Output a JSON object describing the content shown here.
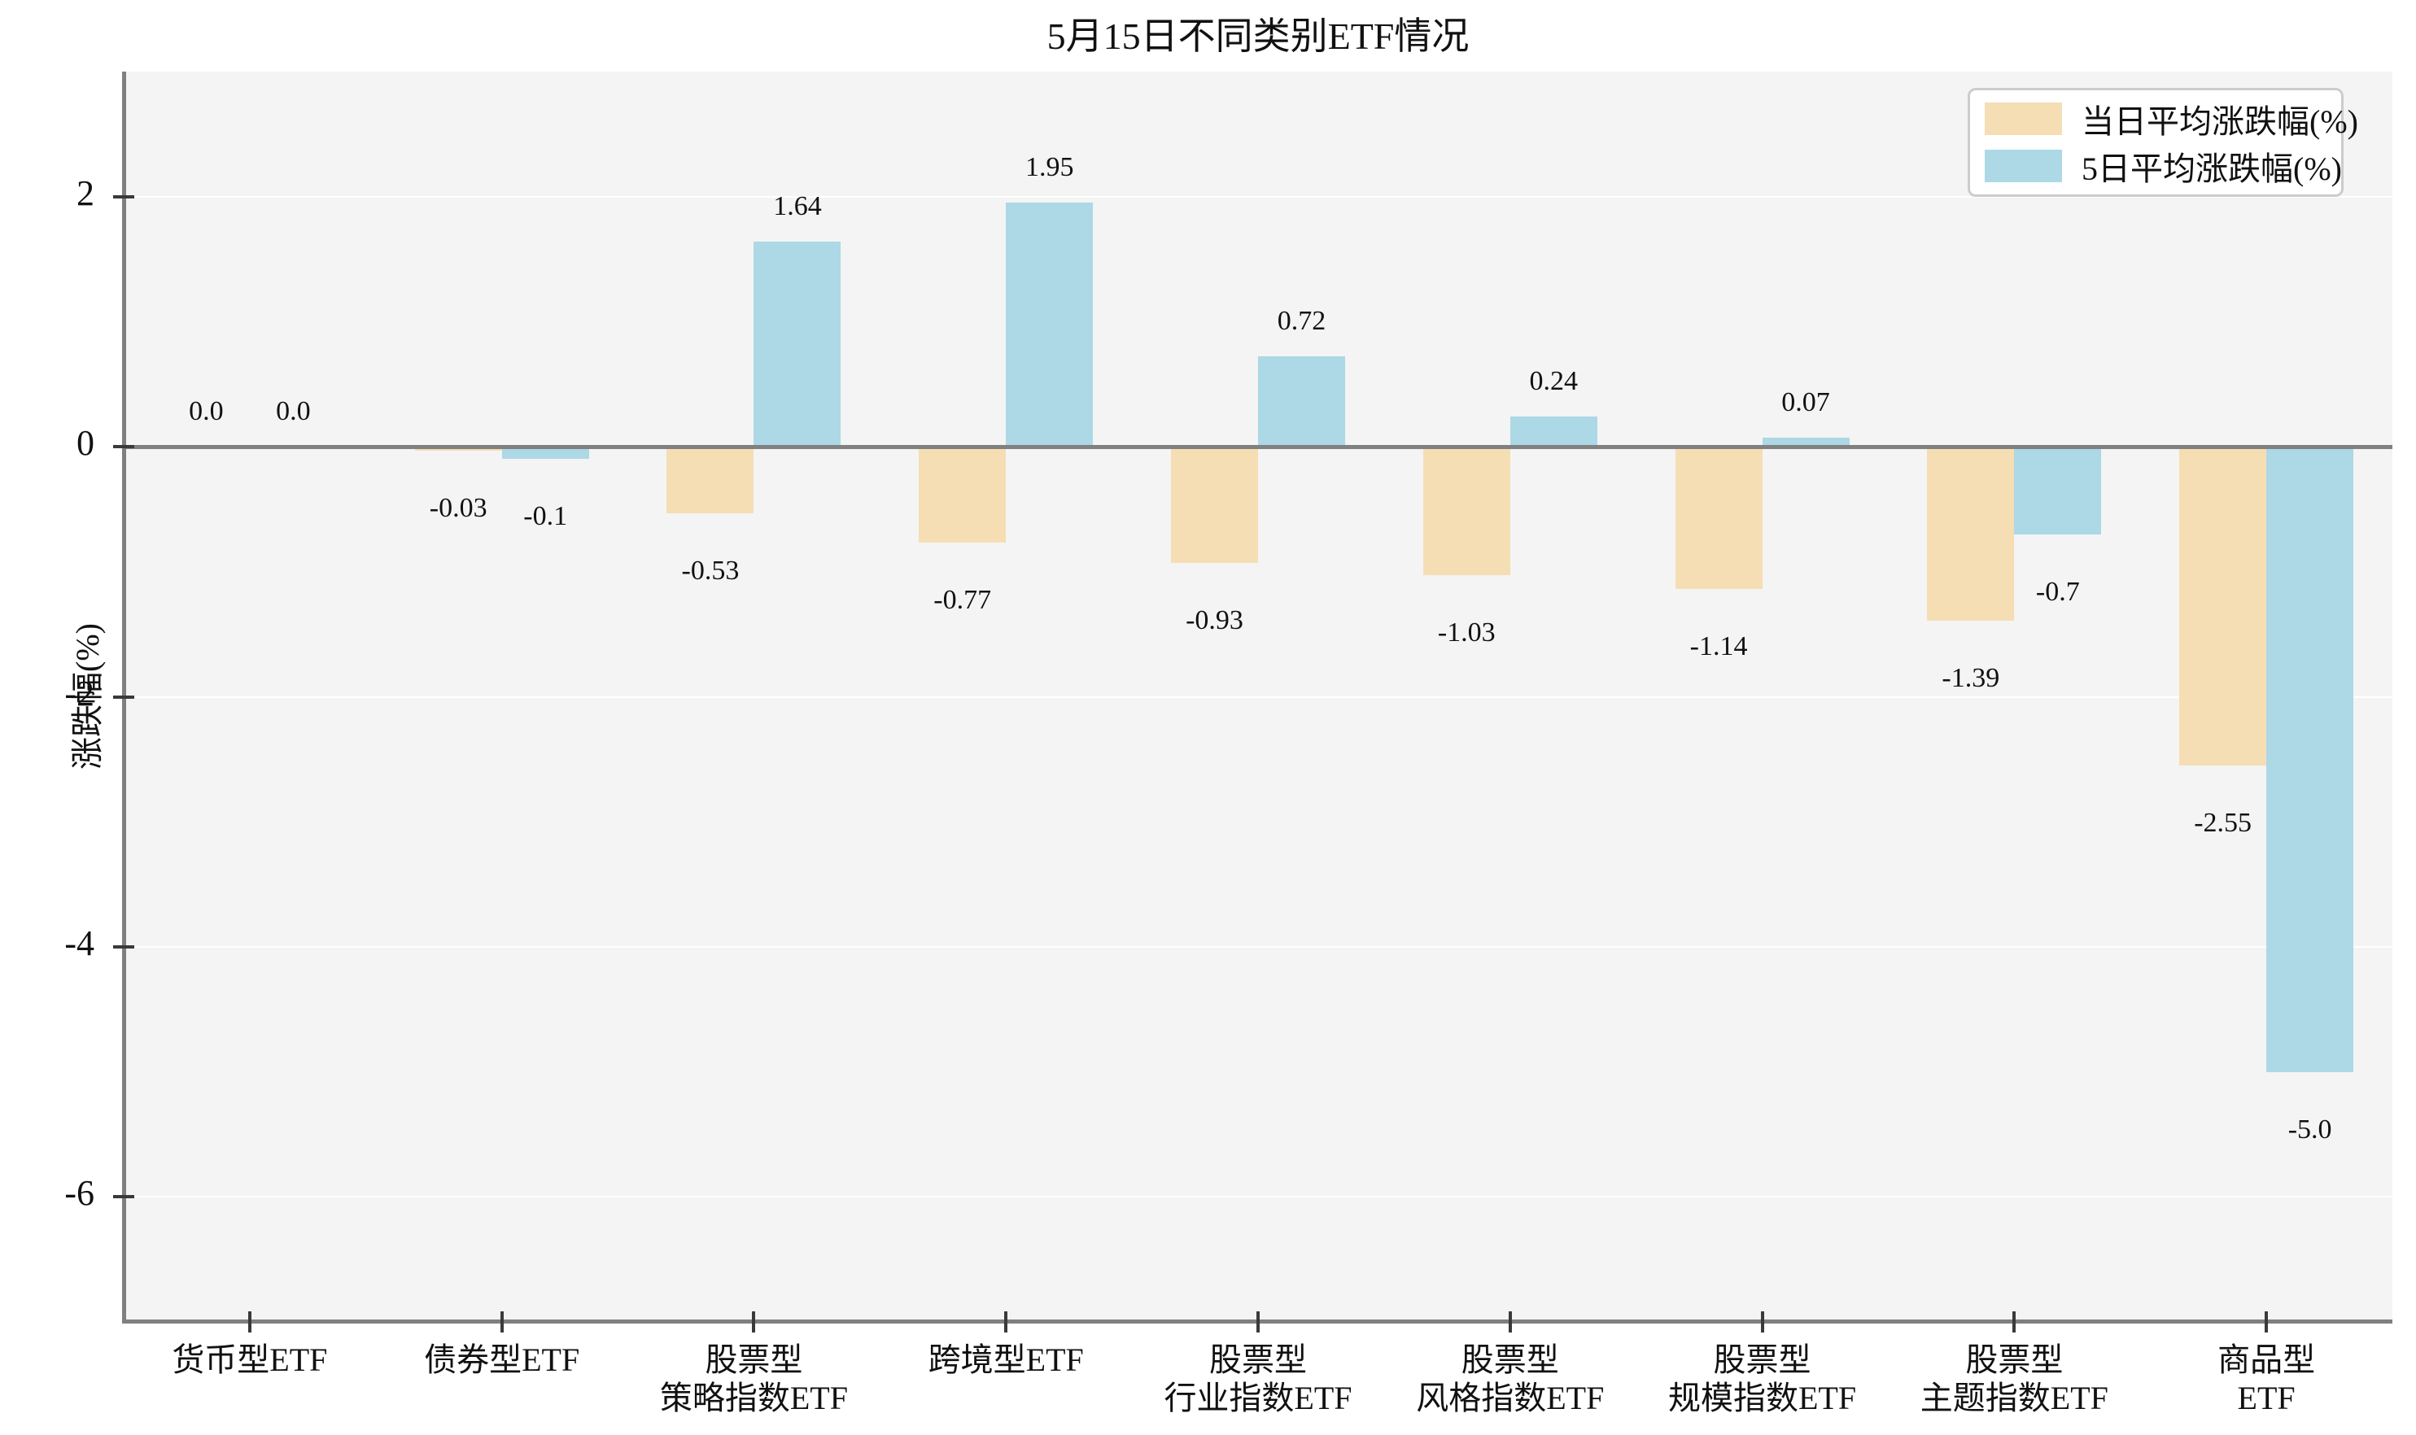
{
  "chart_data": {
    "type": "bar",
    "title": "5月15日不同类别ETF情况",
    "ylabel": "涨跌幅(%)",
    "categories": [
      "货币型ETF",
      "债券型ETF",
      "股票型\n策略指数ETF",
      "跨境型ETF",
      "股票型\n行业指数ETF",
      "股票型\n风格指数ETF",
      "股票型\n规模指数ETF",
      "股票型\n主题指数ETF",
      "商品型ETF"
    ],
    "series": [
      {
        "name": "当日平均涨跌幅(%)",
        "color": "#F5DEB3",
        "values": [
          0.0,
          -0.03,
          -0.53,
          -0.77,
          -0.93,
          -1.03,
          -1.14,
          -1.39,
          -2.55
        ],
        "labels": [
          "0.0",
          "-0.03",
          "-0.53",
          "-0.77",
          "-0.93",
          "-1.03",
          "-1.14",
          "-1.39",
          "-2.55"
        ]
      },
      {
        "name": "5日平均涨跌幅(%)",
        "color": "#ADD8E6",
        "values": [
          0.0,
          -0.1,
          1.64,
          1.95,
          0.72,
          0.24,
          0.07,
          -0.7,
          -5.0
        ],
        "labels": [
          "0.0",
          "-0.1",
          "1.64",
          "1.95",
          "0.72",
          "0.24",
          "0.07",
          "-0.7",
          "-5.0"
        ]
      }
    ],
    "yticks": [
      2,
      0,
      -2,
      -4,
      -6
    ],
    "ytick_labels": [
      "2",
      "0",
      "-2",
      "-4",
      "-6"
    ],
    "ylim": [
      -7,
      3
    ],
    "grid": true,
    "value_labels_shown": true,
    "legend_position": "upper right",
    "colors": {
      "axes_background": "#f4f4f4",
      "gridline": "#ffffff",
      "zero_line": "#808080",
      "spine": "#808080"
    }
  }
}
